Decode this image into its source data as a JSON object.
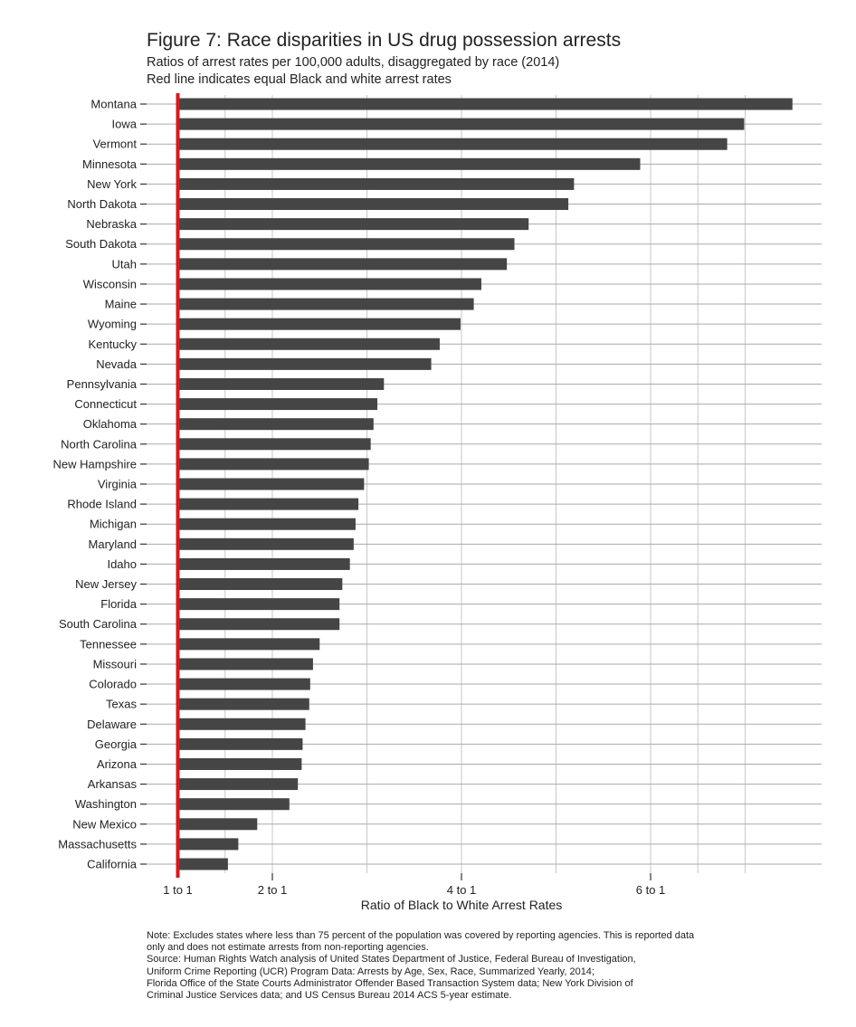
{
  "chart_data": {
    "type": "bar",
    "orientation": "horizontal",
    "title": "Figure 7: Race disparities in US drug possession arrests",
    "subtitle": "Ratios of arrest rates per 100,000 adults, disaggregated by race (2014)",
    "subtitle2": "Red line indicates equal Black and white arrest rates",
    "xlabel": "Ratio of Black to White Arrest Rates",
    "ylabel": "",
    "xlim": [
      1,
      7.8
    ],
    "x_ticks": [
      {
        "value": 1,
        "label": "1 to 1"
      },
      {
        "value": 2,
        "label": "2 to 1"
      },
      {
        "value": 4,
        "label": "4 to 1"
      },
      {
        "value": 6,
        "label": "6 to 1"
      }
    ],
    "x_gridlines": [
      1.5,
      2,
      3,
      4,
      5,
      6,
      6.5,
      7
    ],
    "reference_line": {
      "value": 1,
      "color": "#d7191c"
    },
    "grid": true,
    "bar_color": "#454545",
    "categories": [
      "Montana",
      "Iowa",
      "Vermont",
      "Minnesota",
      "New York",
      "North Dakota",
      "Nebraska",
      "South Dakota",
      "Utah",
      "Wisconsin",
      "Maine",
      "Wyoming",
      "Kentucky",
      "Nevada",
      "Pennsylvania",
      "Connecticut",
      "Oklahoma",
      "North Carolina",
      "New Hampshire",
      "Virginia",
      "Rhode Island",
      "Michigan",
      "Maryland",
      "Idaho",
      "New Jersey",
      "Florida",
      "South Carolina",
      "Tennessee",
      "Missouri",
      "Colorado",
      "Texas",
      "Delaware",
      "Georgia",
      "Arizona",
      "Arkansas",
      "Washington",
      "New Mexico",
      "Massachusetts",
      "California"
    ],
    "values": [
      7.5,
      6.99,
      6.81,
      5.89,
      5.19,
      5.13,
      4.71,
      4.56,
      4.48,
      4.21,
      4.13,
      3.99,
      3.77,
      3.68,
      3.18,
      3.11,
      3.07,
      3.04,
      3.02,
      2.97,
      2.91,
      2.88,
      2.86,
      2.82,
      2.74,
      2.71,
      2.71,
      2.5,
      2.43,
      2.4,
      2.39,
      2.35,
      2.32,
      2.31,
      2.27,
      2.18,
      1.84,
      1.64,
      1.53
    ]
  },
  "notes": [
    "Note: Excludes states where less than 75 percent of the population was covered by reporting agencies. This is reported data",
    "only and does not estimate arrests from non-reporting agencies.",
    "Source: Human Rights Watch analysis of United States Department of Justice, Federal Bureau of Investigation,",
    "Uniform Crime Reporting (UCR) Program Data: Arrests by Age, Sex, Race, Summarized Yearly, 2014;",
    "Florida Office of the State Courts Administrator Offender Based Transaction System data; New York Division of",
    "Criminal Justice Services data; and US Census Bureau 2014 ACS 5-year estimate."
  ]
}
